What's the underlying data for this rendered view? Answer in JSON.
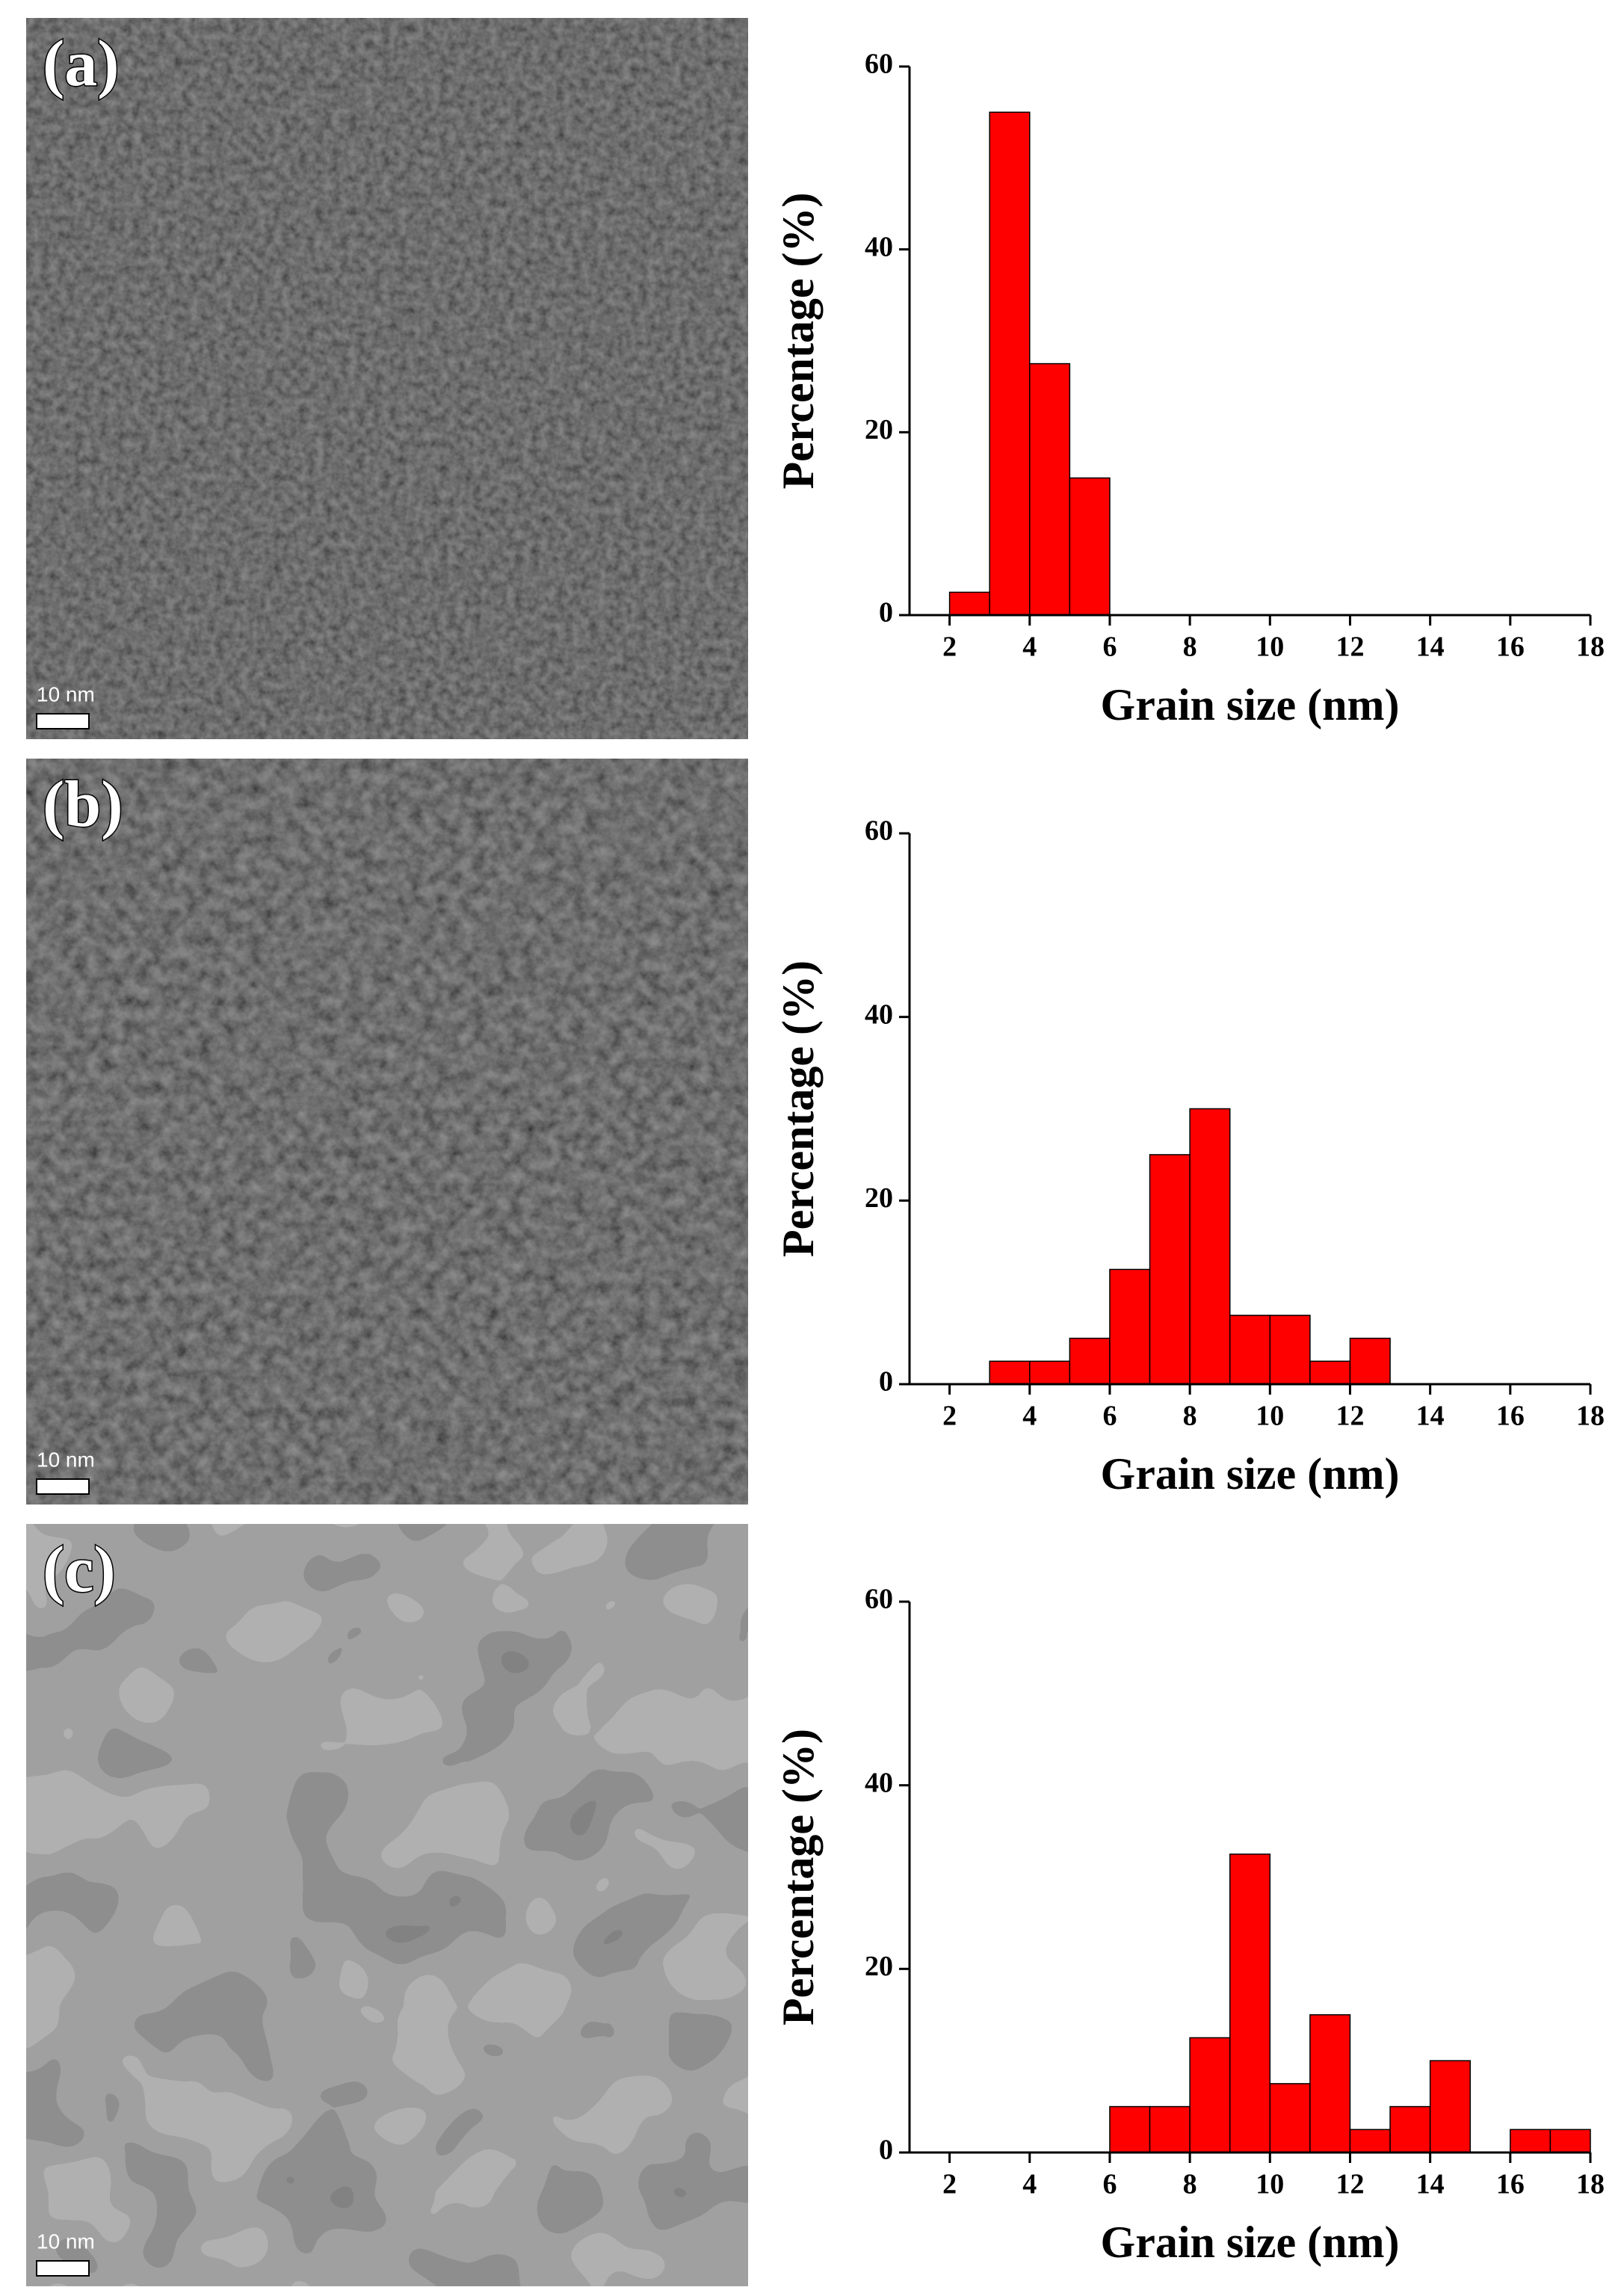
{
  "panels": [
    {
      "label": "(a)",
      "scale_bar": "10 nm"
    },
    {
      "label": "(b)",
      "scale_bar": "10 nm"
    },
    {
      "label": "(c)",
      "scale_bar": "10 nm"
    }
  ],
  "chart_data": [
    {
      "type": "histogram",
      "bins": [
        2,
        3,
        4,
        5,
        6
      ],
      "values": [
        2.5,
        55,
        27.5,
        15
      ],
      "color": "#ff0000",
      "xlim": [
        1,
        18
      ],
      "xticks": [
        2,
        4,
        6,
        8,
        10,
        12,
        14,
        16,
        18
      ],
      "ylim": [
        0,
        60
      ],
      "yticks": [
        0,
        20,
        40,
        60
      ],
      "x_label": "Grain size (nm)",
      "y_label": "Percentage (%)"
    },
    {
      "type": "histogram",
      "bins": [
        3,
        4,
        5,
        6,
        7,
        8,
        9,
        10,
        11,
        12,
        13
      ],
      "values": [
        2.5,
        2.5,
        5,
        12.5,
        25,
        30,
        7.5,
        7.5,
        2.5,
        5
      ],
      "color": "#ff0000",
      "xlim": [
        1,
        18
      ],
      "xticks": [
        2,
        4,
        6,
        8,
        10,
        12,
        14,
        16,
        18
      ],
      "ylim": [
        0,
        60
      ],
      "yticks": [
        0,
        20,
        40,
        60
      ],
      "x_label": "Grain size (nm)",
      "y_label": "Percentage (%)"
    },
    {
      "type": "histogram",
      "bins": [
        6,
        7,
        8,
        9,
        10,
        11,
        12,
        13,
        14,
        15,
        16,
        17,
        18
      ],
      "values": [
        5,
        5,
        12.5,
        32.5,
        7.5,
        15,
        2.5,
        5,
        10,
        0,
        2.5,
        2.5
      ],
      "color": "#ff0000",
      "xlim": [
        1,
        18
      ],
      "xticks": [
        2,
        4,
        6,
        8,
        10,
        12,
        14,
        16,
        18
      ],
      "ylim": [
        0,
        60
      ],
      "yticks": [
        0,
        20,
        40,
        60
      ],
      "x_label": "Grain size (nm)",
      "y_label": "Percentage (%)"
    }
  ]
}
